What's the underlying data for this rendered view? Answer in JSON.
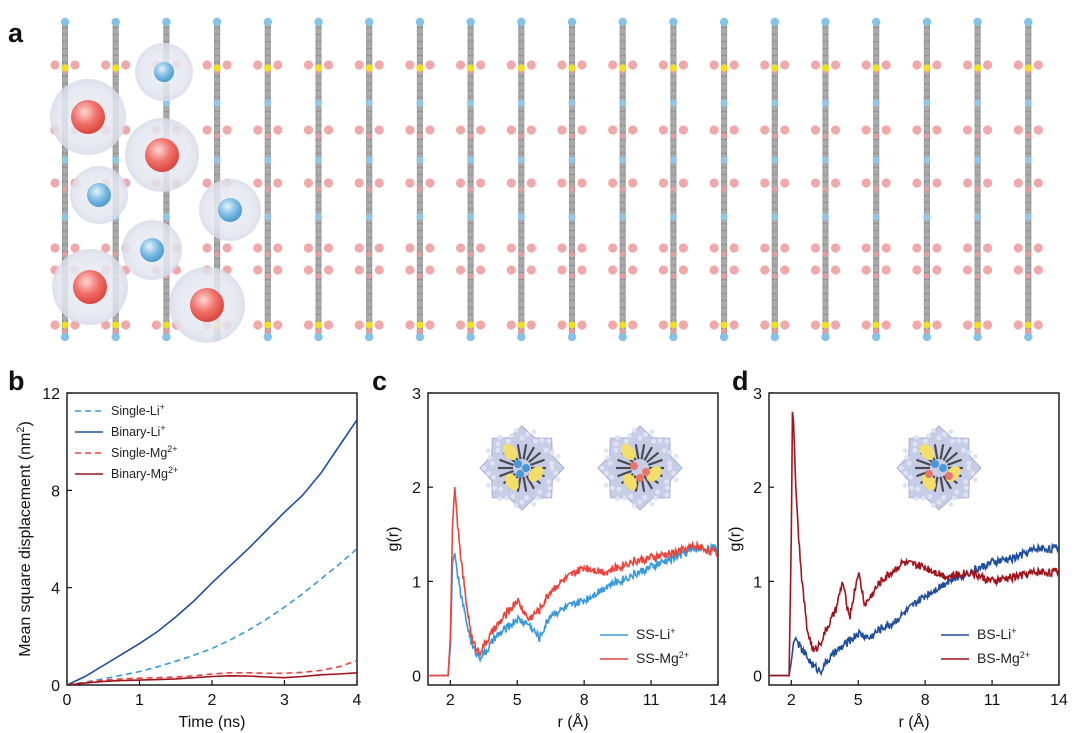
{
  "panels": {
    "a": "a",
    "b": "b",
    "c": "c",
    "d": "d"
  },
  "chart_data": [
    {
      "panel": "b",
      "type": "line",
      "title": "",
      "xlabel": "Time (ns)",
      "ylabel_main": "Mean square displacement (nm",
      "ylabel_sup": "2",
      "ylabel_close": ")",
      "xlim": [
        0,
        4
      ],
      "ylim": [
        0,
        12
      ],
      "xticks": [
        0,
        1,
        2,
        3,
        4
      ],
      "yticks": [
        0,
        4,
        8,
        12
      ],
      "legend_position": "top-left",
      "series": [
        {
          "name": "Single-Li",
          "sup": "+",
          "color": "#3a9ad9",
          "dash": true,
          "x": [
            0,
            0.25,
            0.5,
            0.75,
            1,
            1.25,
            1.5,
            1.75,
            2,
            2.25,
            2.5,
            2.75,
            3,
            3.25,
            3.5,
            3.75,
            4
          ],
          "y": [
            0,
            0.12,
            0.25,
            0.4,
            0.55,
            0.75,
            0.98,
            1.22,
            1.5,
            1.85,
            2.25,
            2.7,
            3.2,
            3.75,
            4.35,
            4.95,
            5.6
          ]
        },
        {
          "name": "Binary-Li",
          "sup": "+",
          "color": "#1f4e9c",
          "dash": false,
          "x": [
            0,
            0.25,
            0.5,
            0.75,
            1,
            1.25,
            1.5,
            1.75,
            2,
            2.25,
            2.5,
            2.75,
            3,
            3.25,
            3.5,
            3.75,
            4
          ],
          "y": [
            0,
            0.35,
            0.8,
            1.25,
            1.7,
            2.2,
            2.8,
            3.45,
            4.2,
            4.9,
            5.6,
            6.35,
            7.1,
            7.8,
            8.7,
            9.8,
            10.9
          ]
        },
        {
          "name": "Single-Mg",
          "sup": "2+",
          "color": "#e8453c",
          "dash": true,
          "x": [
            0,
            0.25,
            0.5,
            0.75,
            1,
            1.25,
            1.5,
            1.75,
            2,
            2.25,
            2.5,
            2.75,
            3,
            3.25,
            3.5,
            3.75,
            4
          ],
          "y": [
            0,
            0.1,
            0.2,
            0.25,
            0.28,
            0.3,
            0.33,
            0.38,
            0.45,
            0.5,
            0.5,
            0.48,
            0.48,
            0.52,
            0.6,
            0.75,
            1.0
          ]
        },
        {
          "name": "Binary-Mg",
          "sup": "2+",
          "color": "#a0141c",
          "dash": false,
          "x": [
            0,
            0.25,
            0.5,
            0.75,
            1,
            1.25,
            1.5,
            1.75,
            2,
            2.25,
            2.5,
            2.75,
            3,
            3.25,
            3.5,
            3.75,
            4
          ],
          "y": [
            0,
            0.08,
            0.15,
            0.18,
            0.2,
            0.22,
            0.25,
            0.3,
            0.35,
            0.38,
            0.37,
            0.33,
            0.3,
            0.35,
            0.42,
            0.45,
            0.5
          ]
        }
      ]
    },
    {
      "panel": "c",
      "type": "line",
      "xlabel": "r (Å)",
      "ylabel": "g(r)",
      "xlim": [
        1,
        14
      ],
      "ylim": [
        -0.1,
        3
      ],
      "xticks": [
        2,
        5,
        8,
        11,
        14
      ],
      "yticks": [
        0,
        1,
        2,
        3
      ],
      "legend_position": "bottom-right",
      "series": [
        {
          "name": "SS-Li",
          "sup": "+",
          "color": "#3a9ad9",
          "x": [
            1,
            1.9,
            2.0,
            2.1,
            2.2,
            2.4,
            2.7,
            3.0,
            3.3,
            3.6,
            4.0,
            4.5,
            5.0,
            5.5,
            6.0,
            6.5,
            7.0,
            8.0,
            9.0,
            10.0,
            11.0,
            12.0,
            13.0,
            14.0
          ],
          "y": [
            0,
            0,
            0.3,
            1.2,
            1.3,
            0.95,
            0.6,
            0.3,
            0.2,
            0.25,
            0.4,
            0.5,
            0.6,
            0.55,
            0.4,
            0.65,
            0.7,
            0.8,
            0.95,
            1.05,
            1.15,
            1.25,
            1.35,
            1.35
          ]
        },
        {
          "name": "SS-Mg",
          "sup": "2+",
          "color": "#e8453c",
          "x": [
            1,
            1.9,
            2.0,
            2.1,
            2.2,
            2.4,
            2.7,
            3.0,
            3.3,
            3.6,
            4.0,
            4.5,
            5.0,
            5.5,
            6.0,
            6.5,
            7.0,
            8.0,
            9.0,
            10.0,
            11.0,
            12.0,
            13.0,
            14.0
          ],
          "y": [
            0,
            0,
            0.4,
            1.6,
            2.0,
            1.4,
            0.8,
            0.35,
            0.25,
            0.35,
            0.5,
            0.65,
            0.8,
            0.6,
            0.7,
            0.9,
            1.0,
            1.15,
            1.1,
            1.2,
            1.25,
            1.3,
            1.38,
            1.3
          ]
        }
      ]
    },
    {
      "panel": "d",
      "type": "line",
      "xlabel": "r (Å)",
      "ylabel": "g(r)",
      "xlim": [
        1,
        14
      ],
      "ylim": [
        -0.1,
        3
      ],
      "xticks": [
        2,
        5,
        8,
        11,
        14
      ],
      "yticks": [
        0,
        1,
        2,
        3
      ],
      "legend_position": "bottom-right",
      "series": [
        {
          "name": "BS-Li",
          "sup": "+",
          "color": "#1f4e9c",
          "x": [
            1,
            1.9,
            2.0,
            2.1,
            2.2,
            2.4,
            2.7,
            3.0,
            3.3,
            3.6,
            4.0,
            4.5,
            5.0,
            5.5,
            6.0,
            6.5,
            7.0,
            8.0,
            9.0,
            10.0,
            11.0,
            12.0,
            13.0,
            14.0
          ],
          "y": [
            0,
            0,
            0.15,
            0.35,
            0.4,
            0.3,
            0.2,
            0.1,
            0.05,
            0.15,
            0.25,
            0.35,
            0.45,
            0.4,
            0.5,
            0.55,
            0.65,
            0.85,
            1.0,
            1.1,
            1.2,
            1.25,
            1.35,
            1.35
          ]
        },
        {
          "name": "BS-Mg",
          "sup": "2+",
          "color": "#a0141c",
          "x": [
            1,
            1.9,
            2.0,
            2.05,
            2.1,
            2.2,
            2.4,
            2.7,
            3.0,
            3.3,
            3.6,
            4.0,
            4.3,
            4.6,
            5.0,
            5.3,
            6.0,
            7.0,
            8.0,
            9.0,
            10.0,
            11.0,
            12.0,
            13.0,
            14.0
          ],
          "y": [
            0,
            0,
            1.5,
            2.8,
            2.7,
            2.0,
            1.2,
            0.5,
            0.25,
            0.35,
            0.5,
            0.7,
            1.0,
            0.6,
            1.1,
            0.75,
            1.0,
            1.2,
            1.15,
            1.05,
            1.1,
            1.0,
            1.05,
            1.1,
            1.1
          ]
        }
      ]
    }
  ]
}
